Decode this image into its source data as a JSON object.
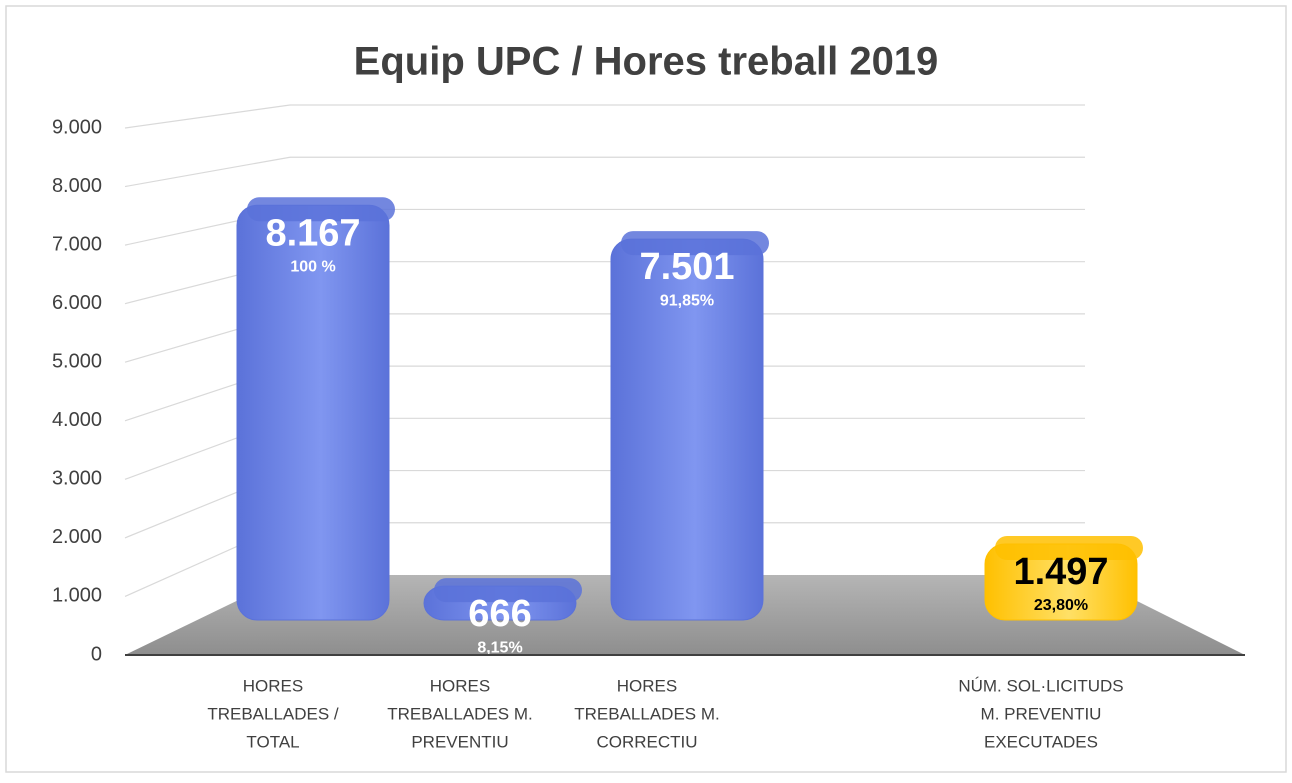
{
  "chart_data": {
    "type": "bar3d",
    "title": "Equip UPC / Hores treball 2019",
    "categories": [
      [
        "HORES",
        "TREBALLADES /",
        "TOTAL"
      ],
      [
        "HORES",
        "TREBALLADES  M.",
        "PREVENTIU"
      ],
      [
        "HORES",
        "TREBALLADES M.",
        "CORRECTIU"
      ],
      null,
      [
        "NÚM. SOL·LICITUDS",
        "M. PREVENTIU",
        "EXECUTADES"
      ]
    ],
    "values": [
      8167,
      666,
      7501,
      null,
      1497
    ],
    "value_labels": [
      "8.167",
      "666",
      "7.501",
      null,
      "1.497"
    ],
    "percent_labels": [
      "100 %",
      "8,15%",
      "91,85%",
      null,
      "23,80%"
    ],
    "colors": [
      "#5b72d9",
      "#5b72d9",
      "#5b72d9",
      null,
      "#ffc000"
    ],
    "ylim": [
      0,
      9000
    ],
    "yticks": [
      0,
      {
        "value": 1000,
        "label": "1.000"
      },
      {
        "value": 2000,
        "label": "2.000"
      },
      {
        "value": 3000,
        "label": "3.000"
      },
      {
        "value": 4000,
        "label": "4.000"
      },
      {
        "value": 5000,
        "label": "5.000"
      },
      {
        "value": 6000,
        "label": "6.000"
      },
      {
        "value": 7000,
        "label": "7.000"
      },
      {
        "value": 8000,
        "label": "8.000"
      },
      {
        "value": 9000,
        "label": "9.000"
      }
    ],
    "grid": true
  }
}
